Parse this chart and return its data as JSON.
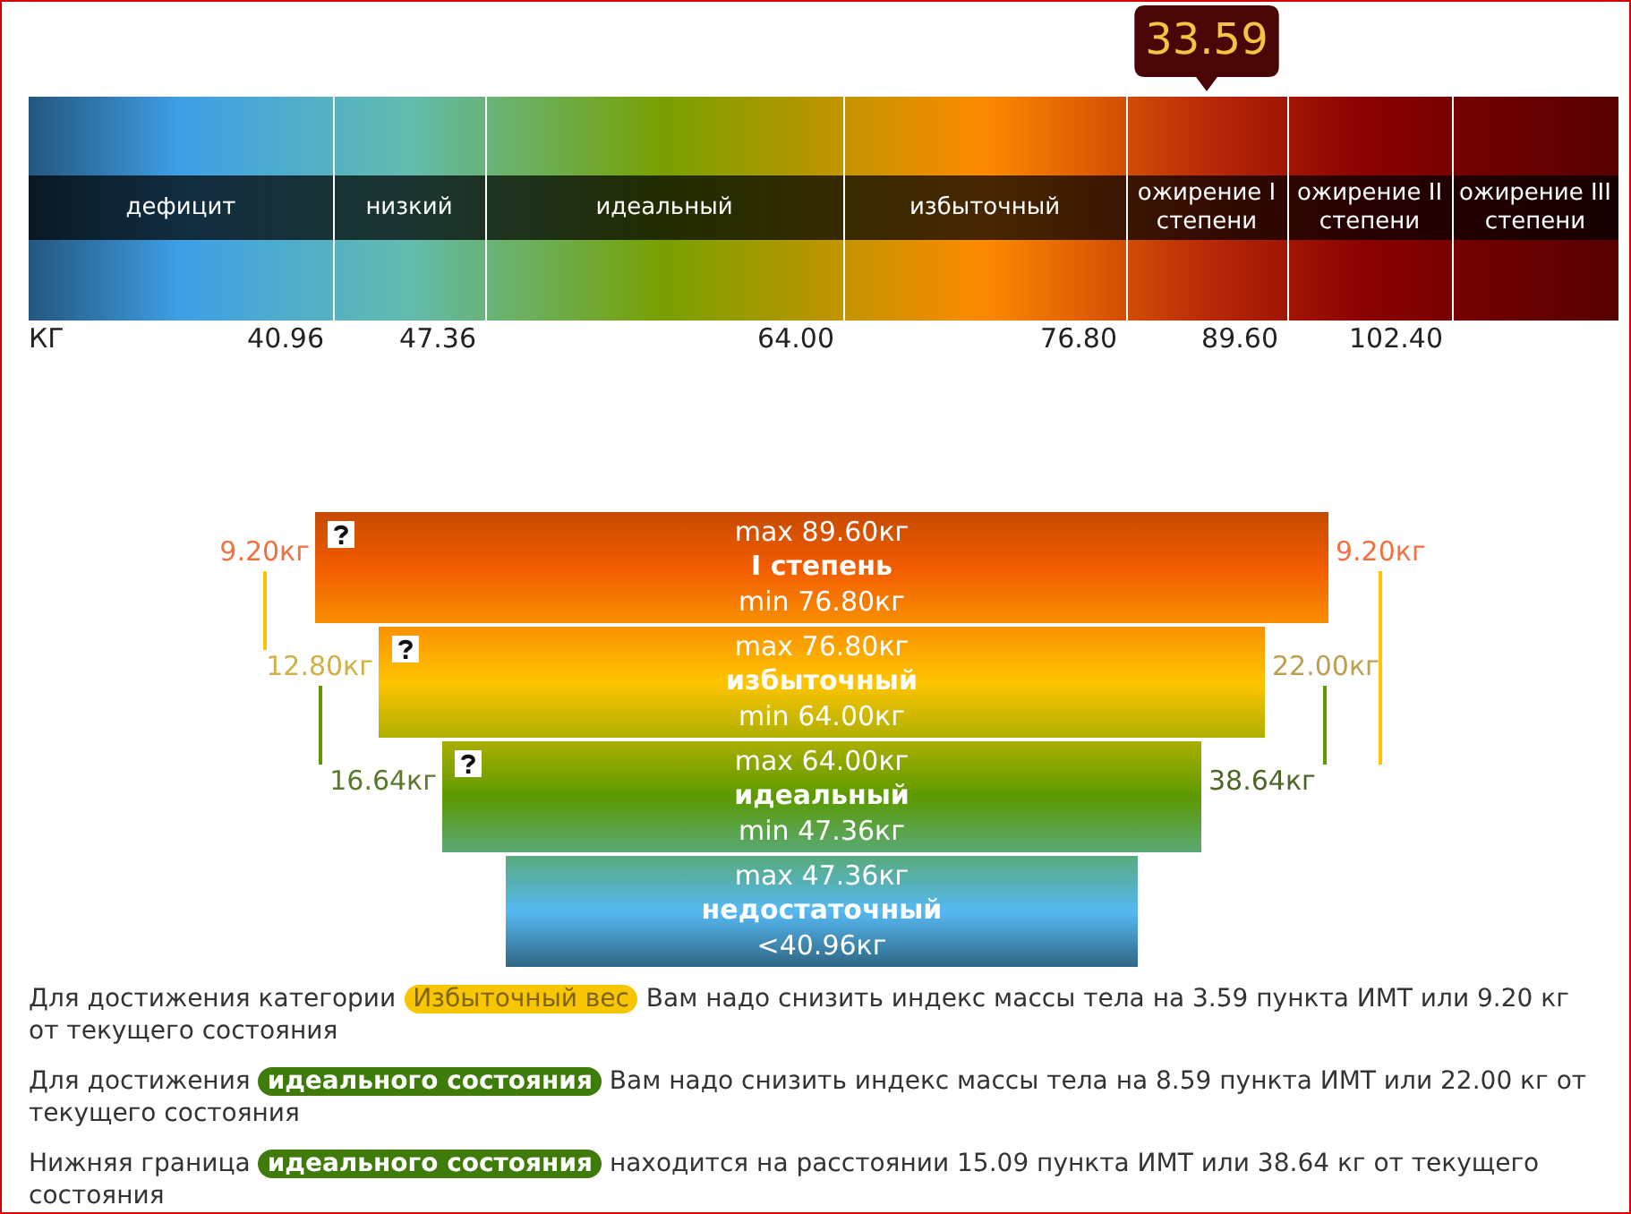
{
  "chart_data": [
    {
      "type": "other",
      "xlabel": "КГ",
      "categories": [
        "дефицит",
        "низкий",
        "идеальный",
        "избыточный",
        "ожирение I степени",
        "ожирение II степени",
        "ожирение III степени"
      ],
      "values": [
        40.96,
        47.36,
        64.0,
        76.8,
        89.6,
        102.4,
        null
      ],
      "value_labels": [
        "40.96",
        "47.36",
        "64.00",
        "76.80",
        "89.60",
        "102.40",
        null
      ],
      "colors": [
        "#3f9fe6",
        "#62bcae",
        "#78a000",
        "#ff8a00",
        "#b82a08",
        "#8a0000",
        "#660000"
      ],
      "annotations": [
        {
          "text": "33.59",
          "x": "ожирение I степени"
        }
      ]
    },
    {
      "type": "other",
      "categories": [
        "I степень",
        "избыточный",
        "идеальный",
        "недостаточный"
      ],
      "colors": [
        "#f25c00",
        "#ffc400",
        "#5c9a00",
        "#55b9f2"
      ],
      "series": [
        {
          "values": [
            89.6,
            76.8,
            64.0,
            47.36
          ],
          "value_labels": [
            "max 89.60кг",
            "max 76.80кг",
            "max 64.00кг",
            "max 47.36кг"
          ]
        },
        {
          "values": [
            76.8,
            64.0,
            47.36,
            40.96
          ],
          "value_labels": [
            "min 76.80кг",
            "min 64.00кг",
            "min 47.36кг",
            "<40.96кг"
          ]
        },
        {
          "values": [
            9.2,
            12.8,
            16.64,
            null
          ],
          "value_labels": [
            "9.20кг",
            "12.80кг",
            "16.64кг",
            null
          ],
          "colors": [
            "#f07040",
            "#d2b048",
            "#5a7a2a",
            null
          ]
        },
        {
          "values": [
            9.2,
            22.0,
            38.64,
            null
          ],
          "value_labels": [
            "9.20кг",
            "22.00кг",
            "38.64кг",
            null
          ],
          "colors": [
            "#f07040",
            "#bca050",
            "#4c6626",
            null
          ]
        }
      ]
    },
    {
      "type": "other",
      "annotations": [
        "Для достижения категории",
        "Избыточный вес",
        "Вам надо снизить индекс массы тела на 3.59 пункта ИМТ или 9.20 кг от текущего состояния",
        "Для достижения",
        "идеального состояния",
        "Вам надо снизить индекс массы тела на 8.59 пункта ИМТ или 22.00 кг от текущего состояния",
        "Нижняя граница",
        "идеального состояния",
        "находится на расстоянии 15.09 пункта ИМТ или 38.64 кг от текущего состояния"
      ]
    }
  ]
}
